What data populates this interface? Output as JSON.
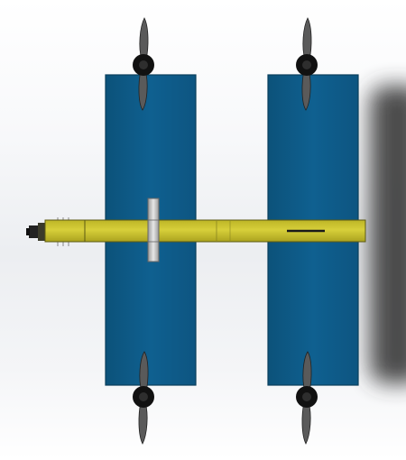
{
  "scene": {
    "background": "#f0f1f3",
    "panel_color": "#0f5c86",
    "panel_edge_color": "#0a3f5c",
    "boom_color": "#c9c12e",
    "boom_edge_color": "#5c5a12",
    "clamp_color": "#c8c8c8",
    "prop_blade_color": "#5a5a5a",
    "prop_hub_color": "#111111",
    "shadow_color": "#3a3a3a",
    "parts": {
      "panels": 2,
      "propellers": 4,
      "boom": 1,
      "clamp": 1,
      "tip_connector": 1
    }
  }
}
